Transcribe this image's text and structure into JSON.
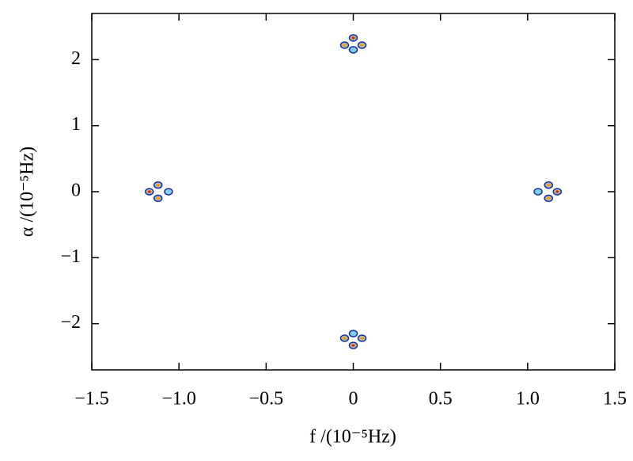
{
  "chart_data": {
    "type": "scatter",
    "x_label": "f /(10⁻⁵Hz)",
    "y_label": "α /(10⁻⁵Hz)",
    "xlim": [
      -1.5,
      1.5
    ],
    "ylim": [
      -2.7,
      2.7
    ],
    "xticks": [
      {
        "value": -1.5,
        "label": "−1.5"
      },
      {
        "value": -1.0,
        "label": "−1.0"
      },
      {
        "value": -0.5,
        "label": "−0.5"
      },
      0,
      0.5,
      {
        "value": 1.0,
        "label": "1.0"
      },
      1.5
    ],
    "yticks": [
      {
        "value": -2,
        "label": "−2"
      },
      {
        "value": -1,
        "label": "−1"
      },
      0,
      1,
      2
    ],
    "series": [
      {
        "color": "#1a2a9c",
        "x": [
          0,
          -0.05,
          0.05,
          0,
          0,
          -0.05,
          0.05,
          0,
          -1.17,
          -1.12,
          -1.12,
          -1.06,
          1.17,
          1.12,
          1.12,
          1.06
        ],
        "y": [
          2.33,
          2.22,
          2.22,
          2.15,
          -2.33,
          -2.22,
          -2.22,
          -2.15,
          0,
          0.1,
          -0.1,
          0,
          0,
          0.1,
          -0.1,
          0
        ]
      },
      {
        "color": "#f0a030",
        "x": [
          0,
          -0.05,
          0.05,
          0,
          -0.05,
          0.05,
          -1.17,
          -1.12,
          -1.12,
          1.17,
          1.12,
          1.12
        ],
        "y": [
          2.33,
          2.22,
          2.22,
          -2.33,
          -2.22,
          -2.22,
          0,
          0.1,
          -0.1,
          0,
          0.1,
          -0.1
        ]
      },
      {
        "color": "#d02020",
        "x": [
          0,
          0,
          -1.17,
          1.17
        ],
        "y": [
          2.33,
          -2.33,
          0,
          0
        ]
      }
    ]
  }
}
